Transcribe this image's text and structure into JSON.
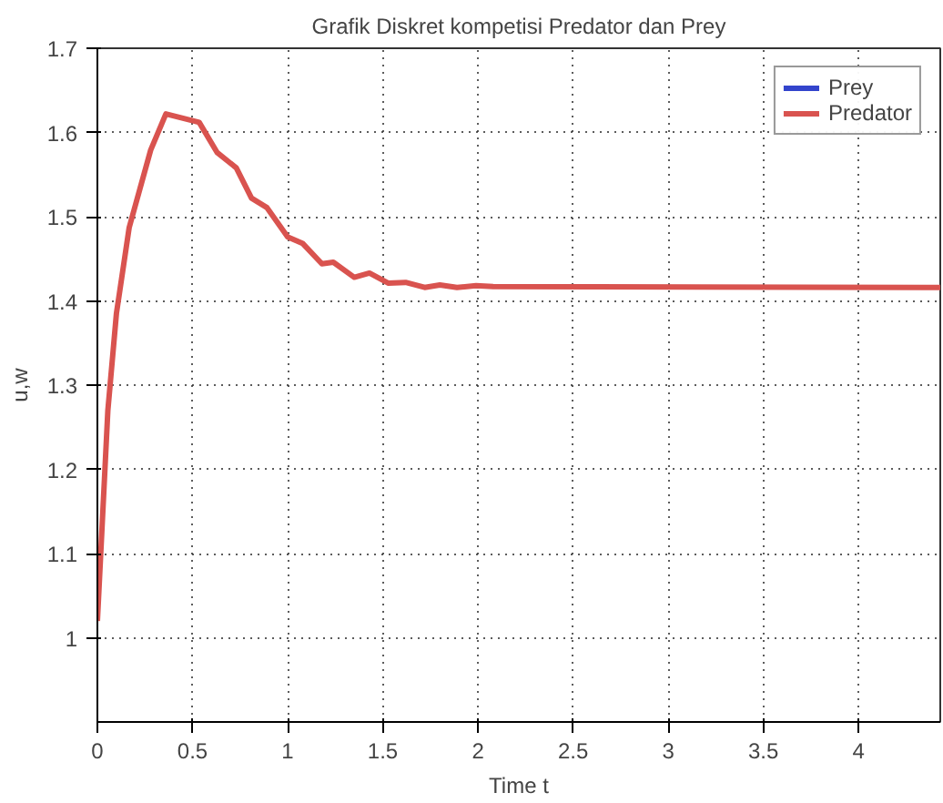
{
  "chart_data": {
    "type": "line",
    "title": "Grafik Diskret kompetisi Predator dan Prey",
    "xlabel": "Time t",
    "ylabel": "u,w",
    "xlim": [
      0,
      4.43
    ],
    "ylim": [
      0.9,
      1.7
    ],
    "xticks": [
      0,
      0.5,
      1,
      1.5,
      2,
      2.5,
      3,
      3.5,
      4
    ],
    "yticks": [
      1,
      1.1,
      1.2,
      1.3,
      1.4,
      1.5,
      1.6,
      1.7
    ],
    "grid": true,
    "legend": "top right",
    "line_style": "solid",
    "x": [
      0,
      0.055,
      0.1,
      0.167,
      0.28,
      0.36,
      0.535,
      0.63,
      0.73,
      0.81,
      0.89,
      1.0,
      1.08,
      1.18,
      1.24,
      1.35,
      1.43,
      1.53,
      1.62,
      1.72,
      1.8,
      1.89,
      1.99,
      2.08,
      4.43
    ],
    "series": [
      {
        "name": "Prey",
        "color": "#3344cc",
        "values": [
          null,
          null,
          null,
          null,
          null,
          null,
          null,
          null,
          null,
          null,
          null,
          null,
          null,
          null,
          null,
          null,
          null,
          null,
          null,
          null,
          null,
          null,
          null,
          null,
          null
        ]
      },
      {
        "name": "Predator",
        "color": "#d9534f",
        "values": [
          1.02,
          1.27,
          1.385,
          1.487,
          1.579,
          1.622,
          1.612,
          1.576,
          1.558,
          1.522,
          1.511,
          1.476,
          1.468,
          1.444,
          1.446,
          1.428,
          1.433,
          1.421,
          1.422,
          1.416,
          1.419,
          1.416,
          1.418,
          1.417,
          1.416
        ]
      }
    ]
  }
}
